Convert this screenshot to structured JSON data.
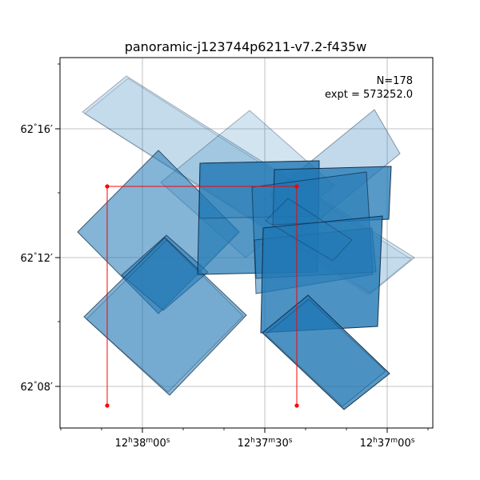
{
  "chart_data": {
    "type": "footprint",
    "title": "panoramic-j123744p6211-v7.2-f435w",
    "annotations": [
      "N=178",
      "expt = 573252.0"
    ],
    "grid": true,
    "x_axis": {
      "label": "",
      "inverted": true,
      "major_ticks": [
        {
          "label": "12h38m00s",
          "label_parts": [
            "12",
            "h",
            "38",
            "m",
            "00",
            "s"
          ]
        },
        {
          "label": "12h37m30s",
          "label_parts": [
            "12",
            "h",
            "37",
            "m",
            "30",
            "s"
          ]
        },
        {
          "label": "12h37m00s",
          "label_parts": [
            "12",
            "h",
            "37",
            "m",
            "00",
            "s"
          ]
        }
      ]
    },
    "y_axis": {
      "label": "",
      "major_ticks": [
        {
          "label": "62°08′",
          "label_parts": [
            "62",
            "°",
            "08′"
          ]
        },
        {
          "label": "62°12′",
          "label_parts": [
            "62",
            "°",
            "12′"
          ]
        },
        {
          "label": "62°16′",
          "label_parts": [
            "62",
            "°",
            "16′"
          ]
        }
      ]
    },
    "footprint_color": "#1f77b4",
    "selection_color": "#ff0000"
  }
}
